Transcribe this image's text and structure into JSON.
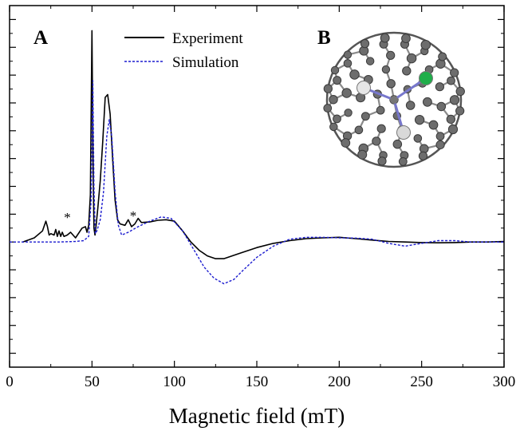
{
  "chart_data": {
    "type": "line",
    "title": "",
    "xlabel": "Magnetic field (mT)",
    "ylabel": "",
    "xlim": [
      0,
      300
    ],
    "ylim": [
      -4.5,
      8.5
    ],
    "x_ticks": [
      0,
      50,
      100,
      150,
      200,
      250,
      300
    ],
    "x_tick_labels": [
      "0",
      "50",
      "100",
      "150",
      "200",
      "250",
      "300"
    ],
    "y_tick_values": [
      -4,
      -3,
      -2,
      -1,
      0,
      1,
      2,
      3,
      4,
      5,
      6,
      7,
      8
    ],
    "y_tick_labels_shown": false,
    "grid": false,
    "legend_position": "top-center",
    "panel_labels": [
      "A",
      "B"
    ],
    "annotations": [
      {
        "text": "*",
        "x": 35,
        "y": 0.9
      },
      {
        "text": "*",
        "x": 75,
        "y": 0.95
      }
    ],
    "inset": {
      "label": "B",
      "description_icon": "endohedral-fullerene-molecule-icon"
    },
    "series": [
      {
        "name": "Experiment",
        "color": "#000000",
        "style": "solid",
        "x": [
          8,
          15,
          20,
          22,
          23,
          24,
          25,
          27,
          28,
          29,
          30,
          31,
          32,
          33,
          35,
          37,
          40,
          44,
          46,
          47,
          48,
          49,
          50,
          50.6,
          51.2,
          51.8,
          52.5,
          53.5,
          55,
          56.5,
          58,
          59.5,
          61,
          62.5,
          64,
          65.5,
          67,
          70,
          72,
          74,
          76,
          78,
          80,
          85,
          90,
          95,
          100,
          105,
          110,
          115,
          120,
          125,
          130,
          135,
          140,
          150,
          160,
          170,
          180,
          190,
          200,
          210,
          220,
          230,
          240,
          250,
          260,
          270,
          280,
          290,
          300
        ],
        "y": [
          0.0,
          0.15,
          0.4,
          0.75,
          0.55,
          0.25,
          0.3,
          0.25,
          0.45,
          0.2,
          0.4,
          0.2,
          0.35,
          0.2,
          0.25,
          0.35,
          0.15,
          0.5,
          0.55,
          0.35,
          0.6,
          1.7,
          7.6,
          3.0,
          0.5,
          0.25,
          0.6,
          1.2,
          2.2,
          3.6,
          5.2,
          5.3,
          4.6,
          3.0,
          1.5,
          0.8,
          0.65,
          0.6,
          0.8,
          0.55,
          0.65,
          0.85,
          0.7,
          0.72,
          0.78,
          0.8,
          0.75,
          0.4,
          0.0,
          -0.3,
          -0.5,
          -0.6,
          -0.6,
          -0.5,
          -0.4,
          -0.2,
          -0.05,
          0.05,
          0.12,
          0.15,
          0.17,
          0.12,
          0.07,
          0.02,
          0.0,
          -0.02,
          -0.03,
          -0.02,
          0.0,
          0.0,
          0.02
        ]
      },
      {
        "name": "Simulation",
        "color": "#1c1ccf",
        "style": "dashed",
        "x": [
          0,
          30,
          40,
          45,
          48,
          49.5,
          50.5,
          51.2,
          52,
          53,
          55,
          57,
          59,
          60.5,
          62,
          64,
          66,
          68,
          72,
          78,
          85,
          92,
          98,
          105,
          112,
          118,
          124,
          130,
          136,
          142,
          150,
          160,
          170,
          180,
          190,
          200,
          210,
          220,
          230,
          240,
          250,
          260,
          270,
          280,
          290,
          300
        ],
        "y": [
          0.0,
          0.0,
          0.02,
          0.05,
          0.2,
          1.5,
          5.8,
          2.0,
          0.3,
          0.4,
          0.8,
          1.8,
          3.8,
          4.4,
          3.8,
          1.8,
          0.6,
          0.25,
          0.35,
          0.55,
          0.75,
          0.9,
          0.85,
          0.4,
          -0.3,
          -0.9,
          -1.3,
          -1.5,
          -1.35,
          -1.0,
          -0.55,
          -0.15,
          0.1,
          0.17,
          0.17,
          0.15,
          0.14,
          0.1,
          -0.05,
          -0.15,
          -0.05,
          0.05,
          0.05,
          0.0,
          0.0,
          0.0
        ]
      }
    ]
  }
}
